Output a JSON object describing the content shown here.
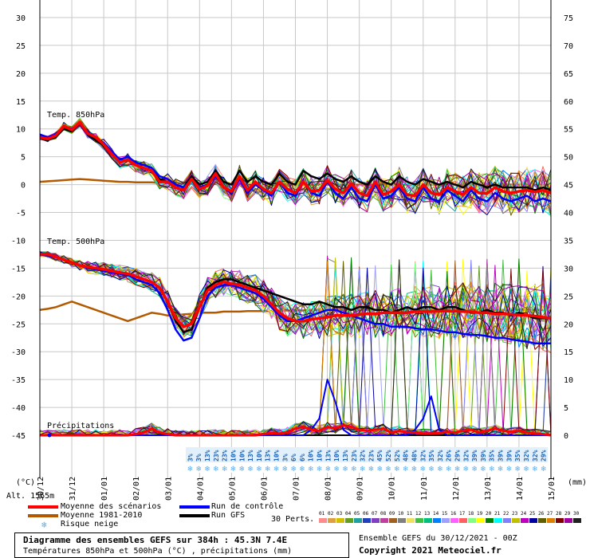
{
  "chart_data": {
    "type": "line",
    "title": "Diagramme des ensembles GEFS sur 384h : 45.3N 7.4E",
    "subtitle": "Températures 850hPa et 500hPa (°C) , précipitations (mm)",
    "run_label": "Ensemble GEFS du 30/12/2021 - 00Z",
    "copyright": "Copyright 2021 Meteociel.fr",
    "altitude": "Alt. 1565m",
    "panel_labels": [
      "Temp. 850hPa",
      "Temp. 500hPa",
      "Précipitations"
    ],
    "left_unit": "(°C)",
    "right_unit": "(mm)",
    "left_axis": {
      "min": -45,
      "max": 30,
      "ticks": [
        30,
        25,
        20,
        15,
        10,
        5,
        0,
        -5,
        -10,
        -15,
        -20,
        -25,
        -30,
        -35,
        -40,
        -45
      ]
    },
    "right_axis": {
      "min": 0,
      "max": 75,
      "ticks": [
        75,
        70,
        65,
        60,
        55,
        50,
        45,
        40,
        35,
        30,
        25,
        20,
        15,
        10,
        5,
        0
      ]
    },
    "x_labels": [
      "30/12",
      "31/12",
      "01/01",
      "02/01",
      "03/01",
      "04/01",
      "05/01",
      "06/01",
      "07/01",
      "08/01",
      "09/01",
      "10/01",
      "11/01",
      "12/01",
      "13/01",
      "14/01",
      "15/01"
    ],
    "t850": {
      "mean": [
        8.5,
        8.2,
        8.8,
        10.5,
        9.8,
        11.2,
        9.2,
        8.5,
        7.2,
        5.5,
        4.0,
        4.5,
        3.5,
        3.0,
        2.5,
        0.5,
        0.5,
        -0.5,
        -1.0,
        1.0,
        -0.8,
        -0.2,
        2.0,
        -0.5,
        -1.2,
        1.5,
        -1.0,
        0.5,
        -0.8,
        -1.5,
        0.5,
        -0.8,
        -1.5,
        0.5,
        -1.2,
        -1.0,
        0.8,
        -0.8,
        -1.5,
        0.2,
        -1.5,
        -2.0,
        0.5,
        -1.8,
        -1.2,
        0.0,
        -1.8,
        -2.0,
        0.0,
        -1.5,
        -1.8,
        -0.5,
        -1.2,
        -1.8,
        -0.5,
        -1.5,
        -1.6,
        -0.5,
        -1.2,
        -1.5,
        -1.2,
        -1.0,
        -1.3,
        -1.0,
        -1.5
      ],
      "control": [
        9.0,
        8.5,
        9.0,
        10.5,
        10.0,
        11.0,
        9.5,
        8.5,
        7.5,
        6.0,
        4.5,
        5.0,
        4.0,
        3.5,
        3.0,
        1.5,
        1.0,
        0.0,
        -0.5,
        1.0,
        -0.5,
        0.0,
        1.5,
        -0.5,
        -1.5,
        1.0,
        -1.5,
        0.0,
        -1.0,
        -2.0,
        0.5,
        -1.5,
        -2.0,
        0.5,
        -1.5,
        -2.0,
        0.5,
        -1.5,
        -2.5,
        -0.5,
        -2.5,
        -3.0,
        0.0,
        -2.5,
        -2.0,
        -0.5,
        -2.5,
        -3.0,
        -0.5,
        -2.5,
        -3.0,
        -1.0,
        -2.0,
        -3.0,
        -1.0,
        -2.5,
        -3.0,
        -1.5,
        -2.5,
        -3.0,
        -2.5,
        -2.0,
        -3.0,
        -2.5,
        -3.0
      ],
      "gfs": [
        8.5,
        8.0,
        8.5,
        10.0,
        9.5,
        11.0,
        9.0,
        8.0,
        7.0,
        5.5,
        4.0,
        4.5,
        3.5,
        3.0,
        2.5,
        1.0,
        0.5,
        0.0,
        -0.5,
        1.5,
        0.0,
        0.5,
        2.5,
        0.5,
        0.0,
        2.5,
        0.5,
        1.5,
        0.5,
        0.0,
        2.0,
        0.5,
        0.0,
        2.5,
        1.5,
        1.0,
        2.0,
        1.0,
        0.5,
        1.5,
        0.5,
        0.0,
        1.5,
        0.5,
        0.0,
        1.5,
        0.5,
        0.0,
        1.0,
        0.5,
        0.0,
        0.5,
        0.0,
        -0.5,
        0.5,
        0.0,
        -0.5,
        0.0,
        -0.5,
        -0.5,
        -0.5,
        -0.5,
        -1.0,
        -0.5,
        -1.0
      ],
      "climo": [
        0.5,
        0.6,
        0.7,
        0.8,
        0.9,
        1.0,
        0.9,
        0.8,
        0.7,
        0.6,
        0.5,
        0.5,
        0.4,
        0.4,
        0.4,
        0.3,
        0.3,
        0.3,
        0.2,
        0.2,
        0.2,
        0.2,
        0.1,
        0.1,
        0.1,
        0.1,
        0.0,
        0.0,
        0.0,
        0.0,
        0.0,
        0.0,
        0.0,
        0.0,
        0.0,
        0.0,
        0.0,
        0.0,
        0.0,
        0.0,
        0.0,
        0.0,
        0.0,
        0.0,
        0.0,
        0.0,
        0.0,
        0.0,
        0.0,
        0.0,
        0.0,
        0.0,
        0.0,
        0.0,
        0.0,
        0.0,
        0.0,
        0.0,
        0.0,
        0.0,
        0.0,
        0.0,
        0.0,
        0.0,
        0.0
      ]
    },
    "t500": {
      "mean": [
        -12.5,
        -12.5,
        -13.0,
        -13.5,
        -14.0,
        -14.5,
        -14.8,
        -15.0,
        -15.2,
        -15.5,
        -15.8,
        -16.0,
        -16.5,
        -17.0,
        -17.5,
        -18.5,
        -21.0,
        -24.0,
        -25.5,
        -25.0,
        -22.0,
        -19.0,
        -18.0,
        -17.5,
        -17.8,
        -18.0,
        -18.5,
        -19.0,
        -20.0,
        -21.5,
        -23.0,
        -24.0,
        -24.5,
        -24.5,
        -24.2,
        -24.0,
        -23.8,
        -23.5,
        -23.5,
        -23.5,
        -23.3,
        -23.2,
        -23.2,
        -23.0,
        -23.0,
        -23.0,
        -23.0,
        -22.8,
        -22.8,
        -22.8,
        -22.7,
        -22.7,
        -22.7,
        -22.8,
        -22.8,
        -23.0,
        -23.0,
        -23.2,
        -23.2,
        -23.3,
        -23.4,
        -23.5,
        -23.6,
        -23.8,
        -24.0
      ],
      "control": [
        -12.5,
        -12.8,
        -13.0,
        -13.5,
        -14.0,
        -14.5,
        -15.0,
        -15.2,
        -15.5,
        -15.8,
        -16.0,
        -16.2,
        -17.0,
        -17.5,
        -18.0,
        -19.5,
        -22.5,
        -26.0,
        -28.0,
        -27.5,
        -24.0,
        -20.0,
        -18.5,
        -18.0,
        -18.0,
        -18.5,
        -19.0,
        -19.5,
        -20.5,
        -22.0,
        -23.5,
        -24.5,
        -24.5,
        -24.0,
        -23.5,
        -23.0,
        -22.5,
        -22.5,
        -23.0,
        -23.5,
        -24.0,
        -24.5,
        -25.0,
        -25.0,
        -25.5,
        -25.5,
        -25.5,
        -25.8,
        -26.0,
        -26.0,
        -26.2,
        -26.5,
        -26.5,
        -26.8,
        -27.0,
        -27.0,
        -27.2,
        -27.5,
        -27.5,
        -27.8,
        -28.0,
        -28.2,
        -28.5,
        -28.5,
        -28.5
      ],
      "gfs": [
        -12.5,
        -12.8,
        -13.0,
        -13.5,
        -14.0,
        -14.5,
        -15.0,
        -15.2,
        -15.5,
        -15.8,
        -16.0,
        -16.2,
        -16.5,
        -17.0,
        -17.5,
        -18.5,
        -21.0,
        -24.5,
        -26.5,
        -26.0,
        -22.0,
        -18.5,
        -17.5,
        -17.0,
        -17.0,
        -17.5,
        -18.0,
        -18.5,
        -19.0,
        -19.5,
        -20.0,
        -20.5,
        -21.0,
        -21.5,
        -21.5,
        -21.0,
        -21.5,
        -22.0,
        -22.0,
        -22.5,
        -22.0,
        -22.0,
        -22.5,
        -22.5,
        -23.0,
        -22.5,
        -22.0,
        -22.5,
        -22.0,
        -22.0,
        -22.5,
        -22.0,
        -22.0,
        -22.5,
        -23.0,
        -23.0,
        -22.5,
        -23.0,
        -23.0,
        -23.5,
        -23.0,
        -23.5,
        -24.0,
        -24.0,
        -24.0
      ],
      "climo": [
        -22.5,
        -22.3,
        -22.0,
        -21.5,
        -21.0,
        -21.5,
        -22.0,
        -22.5,
        -23.0,
        -23.5,
        -24.0,
        -24.5,
        -24.0,
        -23.5,
        -23.0,
        -23.2,
        -23.5,
        -23.5,
        -23.3,
        -23.2,
        -23.0,
        -23.0,
        -23.0,
        -22.8,
        -22.8,
        -22.8,
        -22.7,
        -22.7,
        -22.7,
        -22.7,
        -22.6,
        -22.6,
        -22.6,
        -22.6,
        -22.5,
        -22.5,
        -22.5,
        -22.5,
        -22.5,
        -22.5,
        -22.5,
        -22.5,
        -22.5,
        -22.5,
        -22.5,
        -22.5,
        -22.5,
        -22.5,
        -22.5,
        -22.5,
        -22.5,
        -22.5,
        -22.5,
        -22.5,
        -22.5,
        -22.5,
        -22.5,
        -22.5,
        -22.5,
        -22.5,
        -22.5,
        -22.5,
        -22.5,
        -22.5,
        -22.5
      ]
    },
    "precip_mm": {
      "mean": [
        0,
        0,
        0,
        0,
        0,
        0,
        0,
        0,
        0,
        0,
        0,
        0,
        0.2,
        0.5,
        1.2,
        0.5,
        0.2,
        0,
        0,
        0,
        0,
        0,
        0,
        0,
        0,
        0,
        0,
        0,
        0.2,
        0.4,
        0.3,
        0.5,
        1.2,
        1.5,
        1.0,
        0.8,
        1.5,
        1.2,
        1.8,
        1.5,
        1.0,
        0.8,
        1.0,
        1.2,
        0.5,
        0.8,
        0.5,
        0.5,
        0.3,
        0.3,
        0.4,
        0.6,
        0.5,
        0.8,
        1.0,
        0.5,
        0.8,
        1.2,
        0.8,
        0.6,
        0.8,
        0.5,
        0.3,
        0.2,
        0
      ],
      "control": [
        0,
        0,
        0,
        0,
        0,
        0,
        0,
        0,
        0,
        0,
        0,
        0,
        0,
        0,
        0,
        0,
        0,
        0,
        0,
        0,
        0,
        0,
        0,
        0,
        0,
        0,
        0,
        0,
        0,
        0,
        0,
        0,
        0,
        0,
        1.0,
        3.0,
        10.0,
        6.0,
        1.0,
        0,
        0,
        0,
        0,
        0,
        0,
        0,
        0,
        1.0,
        3.0,
        7.0,
        1.0,
        0,
        0,
        0,
        0,
        0,
        0,
        0,
        0,
        0,
        0,
        0,
        0,
        0,
        0
      ],
      "gfs": [
        0,
        0,
        0,
        0,
        0,
        0,
        0,
        0,
        0,
        0,
        0,
        0,
        0,
        0,
        0,
        0,
        0,
        0,
        0,
        0,
        0,
        0,
        0,
        0,
        0,
        0,
        0,
        0,
        0,
        0,
        0,
        0,
        0,
        0,
        0,
        0,
        0,
        0,
        0,
        0,
        0,
        0,
        0,
        0,
        0,
        0,
        0,
        0,
        0,
        0,
        0,
        0,
        0,
        0,
        0,
        0,
        0,
        0,
        0,
        0,
        0,
        0,
        0,
        0,
        0
      ]
    },
    "snow_risk": [
      "3%",
      "3%",
      "13%",
      "23%",
      "23%",
      "10%",
      "10%",
      "13%",
      "10%",
      "13%",
      "10%",
      "3%",
      "6%",
      "6%",
      "10%",
      "10%",
      "13%",
      "10%",
      "13%",
      "23%",
      "32%",
      "23%",
      "45%",
      "52%",
      "52%",
      "48%",
      "48%",
      "32%",
      "35%",
      "32%",
      "26%",
      "29%",
      "32%",
      "39%",
      "39%",
      "35%",
      "39%",
      "39%",
      "35%",
      "32%",
      "32%",
      "29%"
    ],
    "legend": {
      "mean": "Moyenne des scénarios",
      "climo": "Moyenne 1981-2010",
      "snow": "Risque neige",
      "control": "Run de contrôle",
      "gfs": "Run GFS",
      "perts": "30 Perts."
    },
    "colors": {
      "mean": "#ff0000",
      "climo": "#b35a00",
      "control": "#0000ff",
      "gfs": "#000000",
      "grid": "#c8c8c8",
      "snow": "#5aaee8"
    },
    "pert_numbers": [
      "01",
      "02",
      "03",
      "04",
      "05",
      "06",
      "07",
      "08",
      "09",
      "10",
      "11",
      "12",
      "13",
      "14",
      "15",
      "16",
      "17",
      "18",
      "19",
      "20",
      "21",
      "22",
      "23",
      "24",
      "25",
      "26",
      "27",
      "28",
      "29",
      "30"
    ],
    "pert_colors": [
      "#ff8c8c",
      "#e0a040",
      "#d0c000",
      "#60a020",
      "#20a0a0",
      "#2040c0",
      "#8040c0",
      "#c040a0",
      "#a06020",
      "#808080",
      "#f0e060",
      "#40c040",
      "#00c080",
      "#0080ff",
      "#a0a0ff",
      "#ff60ff",
      "#ff6060",
      "#80ff80",
      "#ffff00",
      "#008000",
      "#00ffff",
      "#8080ff",
      "#c0c000",
      "#c000c0",
      "#0000a0",
      "#606000",
      "#e08000",
      "#800000",
      "#a000a0",
      "#202020"
    ]
  }
}
